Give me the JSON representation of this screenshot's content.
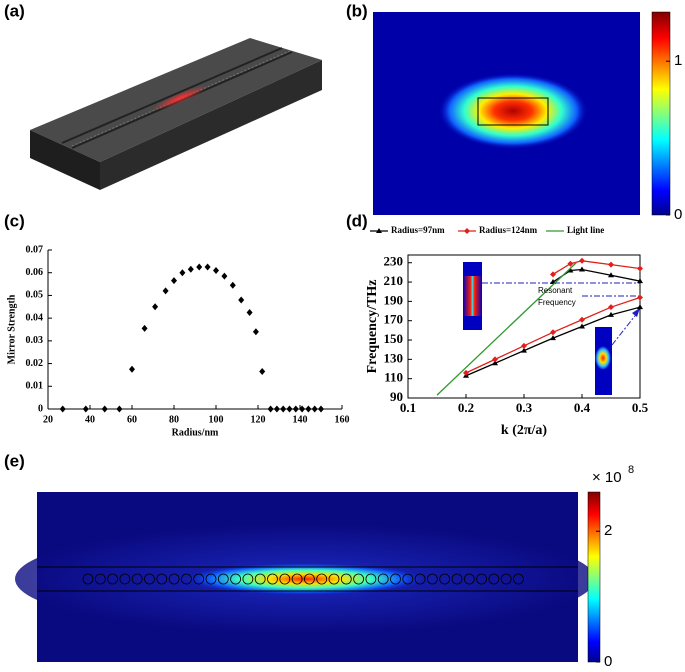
{
  "panel_labels": [
    "(a)",
    "(b)",
    "(c)",
    "(d)",
    "(e)"
  ],
  "colorbar_b": {
    "ticks": [
      0,
      1
    ],
    "lim": [
      0,
      1.32
    ]
  },
  "colorbar_e": {
    "ticks": [
      0,
      2
    ],
    "lim": [
      0,
      2.6
    ],
    "scale_base": "× 10",
    "scale_exponent": "8"
  },
  "chart_data": [
    {
      "type": "scatter",
      "x_label": "Radius/nm",
      "y_label": "Mirror Strength",
      "color": "#000000",
      "x": [
        27,
        38,
        47,
        54,
        60,
        66,
        71,
        76,
        80,
        84,
        88,
        92,
        96,
        100,
        104,
        108,
        112,
        116,
        119,
        122,
        126,
        129,
        132,
        135,
        138,
        141,
        144,
        147,
        150
      ],
      "values": [
        0,
        0,
        0,
        0,
        0.0175,
        0.0355,
        0.045,
        0.052,
        0.0565,
        0.06,
        0.0615,
        0.0625,
        0.0625,
        0.061,
        0.0585,
        0.0545,
        0.048,
        0.0425,
        0.034,
        0.0165,
        0,
        0,
        0,
        0,
        0,
        0,
        0,
        0,
        0
      ],
      "xlim": [
        20,
        160
      ],
      "xticks": [
        20,
        40,
        60,
        80,
        100,
        120,
        140,
        160
      ],
      "ylim": [
        0,
        0.07
      ],
      "yticks": [
        0,
        0.01,
        0.02,
        0.03,
        0.04,
        0.05,
        0.06,
        0.07
      ]
    },
    {
      "type": "line",
      "x_label": "k (2π/a)",
      "y_label": "Frequency/THz",
      "annotation": [
        "Resonant",
        "Frequency"
      ],
      "legend": "top",
      "series": [
        {
          "name": "Radius=97nm",
          "color": "#000000",
          "marker": "triangle",
          "x": [
            0.2,
            0.25,
            0.3,
            0.35,
            0.4,
            0.45,
            0.5,
            null,
            0.35,
            0.38,
            0.4,
            0.45,
            0.5
          ],
          "values": [
            113,
            126,
            139,
            152,
            164,
            176,
            184,
            null,
            210,
            222,
            223,
            217,
            211
          ]
        },
        {
          "name": "Radius=124nm",
          "color": "#e0201b",
          "marker": "diamond",
          "x": [
            0.2,
            0.25,
            0.3,
            0.35,
            0.4,
            0.45,
            0.5,
            null,
            0.35,
            0.38,
            0.4,
            0.45,
            0.5
          ],
          "values": [
            116,
            130,
            144,
            158,
            171,
            184,
            194,
            null,
            218,
            229,
            232,
            228,
            224
          ]
        },
        {
          "name": "Light line",
          "color": "#2e9a2e",
          "marker": "none",
          "x": [
            0.15,
            0.39
          ],
          "values": [
            93,
            230
          ]
        }
      ],
      "xlim": [
        0.1,
        0.5
      ],
      "xticks": [
        0.1,
        0.2,
        0.3,
        0.4,
        0.5
      ],
      "ylim": [
        90,
        238
      ],
      "yticks": [
        90,
        110,
        130,
        150,
        170,
        190,
        210,
        230
      ]
    }
  ]
}
